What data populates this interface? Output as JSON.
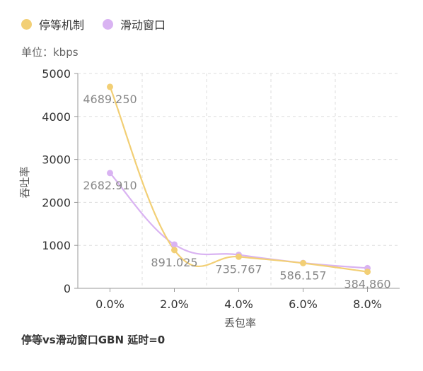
{
  "legend": {
    "series1": "停等机制",
    "series2": "滑动窗口"
  },
  "unit_label": "单位：kbps",
  "caption": "停等vs滑动窗口GBN 延时=0",
  "colors": {
    "series1": "#f2cf75",
    "series2": "#d9b3f2",
    "grid": "#dddddd",
    "axis": "#999999",
    "label": "#888888"
  },
  "chart_data": {
    "type": "line",
    "title": "",
    "xlabel": "丢包率",
    "ylabel": "吞吐率",
    "categories": [
      "0.0%",
      "2.0%",
      "4.0%",
      "6.0%",
      "8.0%"
    ],
    "x": [
      0,
      2,
      4,
      6,
      8
    ],
    "xlim": [
      -1,
      9
    ],
    "ylim": [
      0,
      5000
    ],
    "yticks": [
      0,
      1000,
      2000,
      3000,
      4000,
      5000
    ],
    "grid": true,
    "legend_position": "top-left",
    "series": [
      {
        "name": "停等机制",
        "values": [
          4689.25,
          891.025,
          735.767,
          586.157,
          384.86
        ],
        "data_labels": [
          "4689.250",
          "891.025",
          "735.767",
          "586.157",
          "384.860"
        ]
      },
      {
        "name": "滑动窗口",
        "values": [
          2682.91,
          1020,
          780,
          590,
          470
        ],
        "data_labels": [
          "2682.910",
          "",
          "",
          "",
          ""
        ]
      }
    ]
  }
}
